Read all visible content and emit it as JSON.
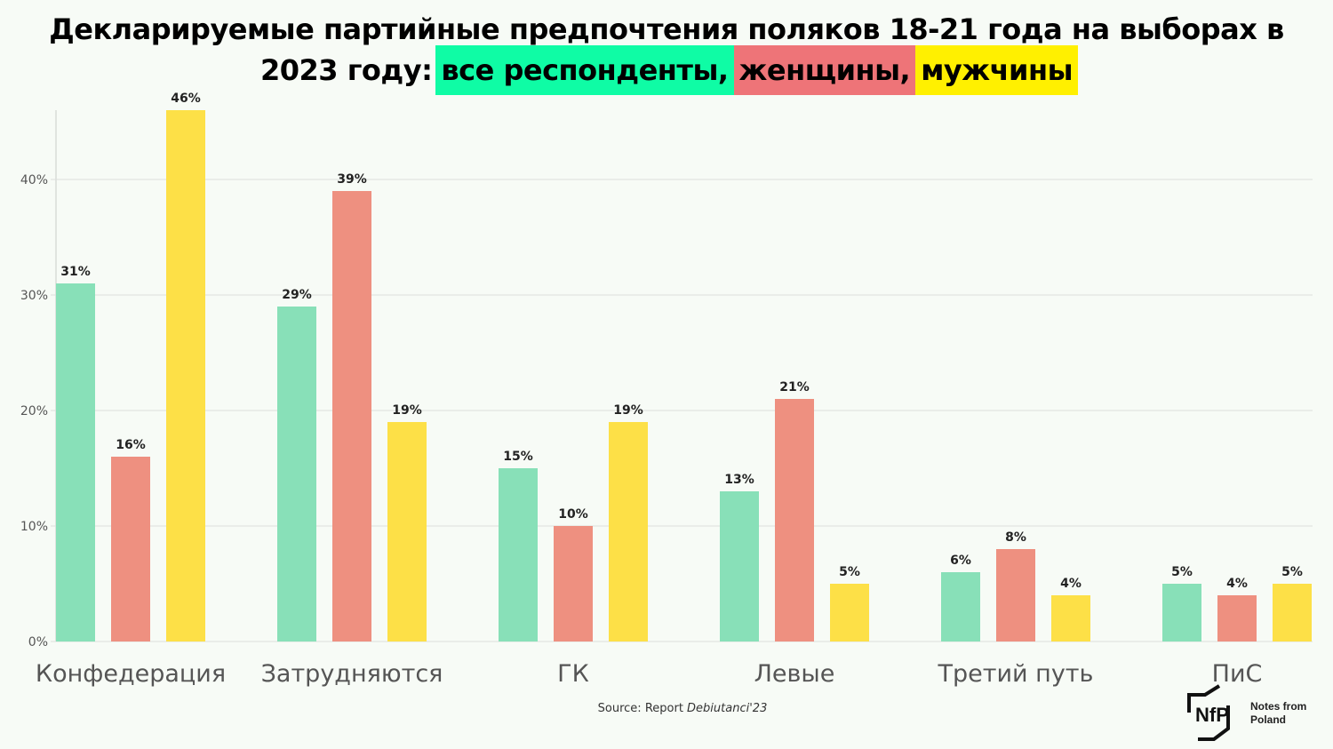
{
  "title": {
    "line1": "Декларируемые партийные предпочтения поляков 18-21 года на выборах в",
    "line2_prefix": "2023 году:",
    "legend_all": "все респонденты,",
    "legend_women": "женщины,",
    "legend_men": "мужчины"
  },
  "colors": {
    "all": "#88e0b8",
    "women": "#ee9080",
    "men": "#fde047",
    "hl_all": "#0ffca5",
    "hl_women": "#ee7478",
    "hl_men": "#fff000"
  },
  "chart_data": {
    "type": "bar",
    "title": "Декларируемые партийные предпочтения поляков 18-21 года на выборах в 2023 году",
    "categories": [
      "Конфедерация",
      "Затрудняются",
      "ГК",
      "Левые",
      "Третий путь",
      "ПиС"
    ],
    "series": [
      {
        "name": "все респонденты",
        "values": [
          31,
          29,
          15,
          13,
          6,
          5
        ]
      },
      {
        "name": "женщины",
        "values": [
          16,
          39,
          10,
          21,
          8,
          4
        ]
      },
      {
        "name": "мужчины",
        "values": [
          46,
          19,
          19,
          5,
          4,
          5
        ]
      }
    ],
    "ylim": [
      0,
      46
    ],
    "yticks": [
      0,
      10,
      20,
      30,
      40
    ],
    "ytick_labels": [
      "0%",
      "10%",
      "20%",
      "30%",
      "40%"
    ],
    "grid": true,
    "xlabel": "",
    "ylabel": ""
  },
  "source": {
    "prefix": "Source: Report ",
    "italic": "Debiutanci'23"
  },
  "logo": {
    "mark": "NFP",
    "line1": "Notes from",
    "line2": "Poland"
  }
}
